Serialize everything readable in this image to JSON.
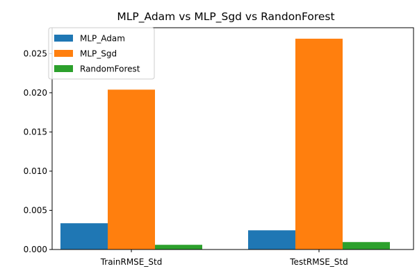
{
  "chart_data": {
    "type": "bar",
    "title": "MLP_Adam vs MLP_Sgd vs RandonForest",
    "xlabel": "",
    "ylabel": "",
    "categories": [
      "TrainRMSE_Std",
      "TestRMSE_Std"
    ],
    "series": [
      {
        "name": "MLP_Adam",
        "color": "#1f77b4",
        "values": [
          0.00335,
          0.00245
        ]
      },
      {
        "name": "MLP_Sgd",
        "color": "#ff7f0e",
        "values": [
          0.0204,
          0.0269
        ]
      },
      {
        "name": "RandomForest",
        "color": "#2ca02c",
        "values": [
          0.0006,
          0.00095
        ]
      }
    ],
    "ylim": [
      0,
      0.0283
    ],
    "yticks": [
      "0.000",
      "0.005",
      "0.010",
      "0.015",
      "0.020",
      "0.025"
    ],
    "grid": false,
    "legend_position": "upper-left"
  }
}
